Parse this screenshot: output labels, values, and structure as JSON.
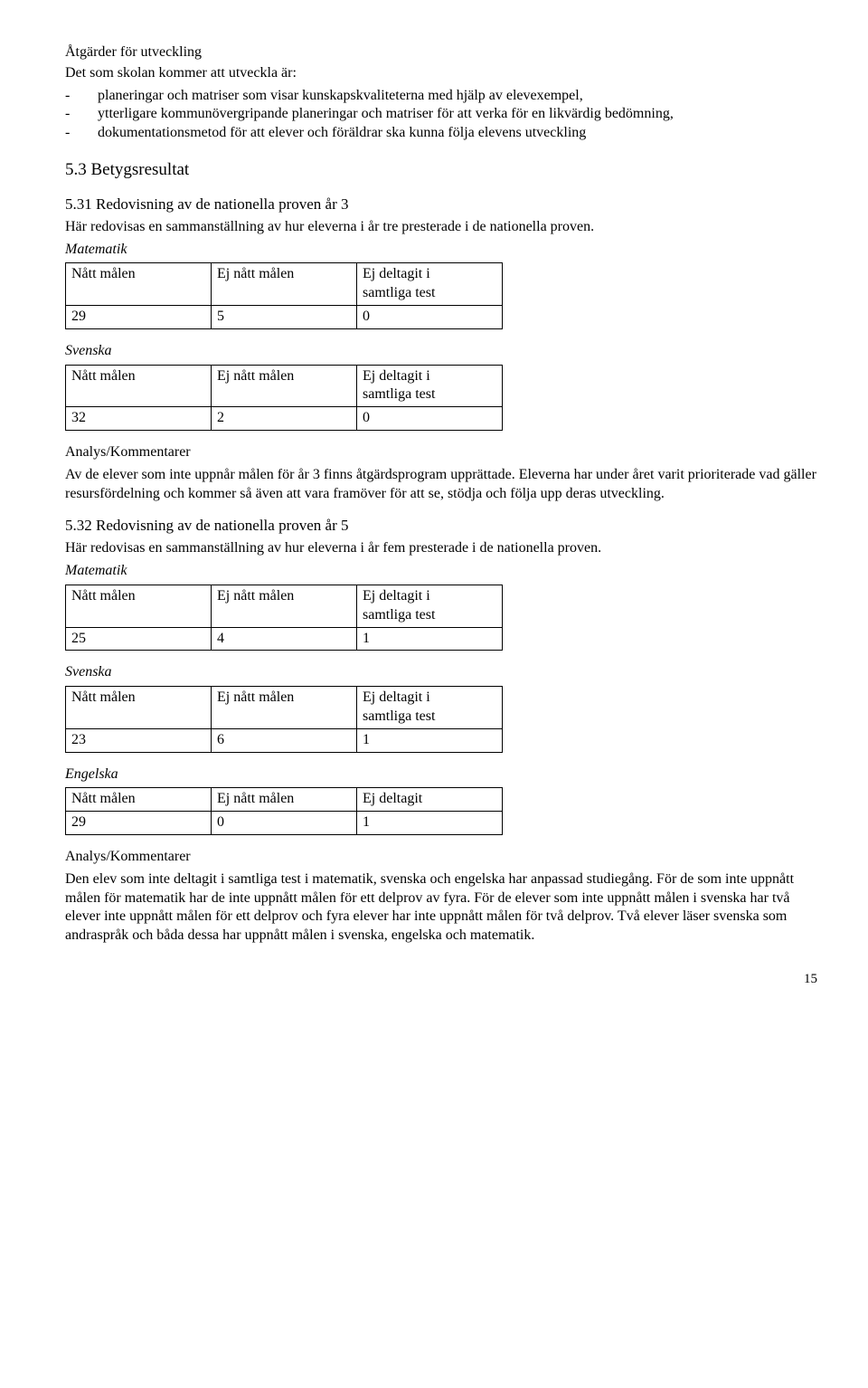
{
  "section_atgarder": {
    "heading": "Åtgärder för utveckling",
    "intro": "Det som skolan kommer att utveckla är:",
    "bullets": [
      "planeringar och matriser som visar kunskapskvaliteterna med hjälp av elevexempel,",
      "ytterligare kommunövergripande planeringar och matriser för att verka för en likvärdig bedömning,",
      "dokumentationsmetod för att elever och föräldrar ska kunna följa elevens utveckling"
    ]
  },
  "section_53": {
    "heading": "5.3 Betygsresultat"
  },
  "section_531": {
    "heading": "5.31 Redovisning av de nationella proven år 3",
    "intro": "Här redovisas en sammanställning av hur eleverna i år tre presterade i de nationella proven.",
    "math_label": "Matematik",
    "col_a": "Nått målen",
    "col_b": "Ej nått målen",
    "col_c_line1": "Ej deltagit i",
    "col_c_line2": "samtliga test",
    "math_values": {
      "a": "29",
      "b": "5",
      "c": "0"
    },
    "sv_label": "Svenska",
    "sv_values": {
      "a": "32",
      "b": "2",
      "c": "0"
    },
    "analysis_heading": "Analys/Kommentarer",
    "analysis_text": "Av de elever som inte uppnår målen för år 3 finns åtgärdsprogram upprättade. Eleverna har under året varit prioriterade vad gäller resursfördelning och kommer så även att vara framöver för att se, stödja och följa upp deras utveckling."
  },
  "section_532": {
    "heading": "5.32 Redovisning av de nationella proven år 5",
    "intro": "Här redovisas en sammanställning av hur eleverna i år fem presterade i de nationella proven.",
    "math_label": "Matematik",
    "col_a": "Nått målen",
    "col_b": "Ej nått målen",
    "col_c_line1": "Ej deltagit i",
    "col_c_line2": "samtliga test",
    "col_c_single": "Ej deltagit",
    "math_values": {
      "a": "25",
      "b": "4",
      "c": "1"
    },
    "sv_label": "Svenska",
    "sv_values": {
      "a": "23",
      "b": "6",
      "c": "1"
    },
    "en_label": "Engelska",
    "en_values": {
      "a": "29",
      "b": "0",
      "c": "1"
    },
    "analysis_heading": "Analys/Kommentarer",
    "analysis_text": "Den elev som inte deltagit i samtliga test i matematik, svenska och engelska har anpassad studiegång. För de som inte uppnått målen för matematik har de inte uppnått målen för ett delprov av fyra. För de elever som inte uppnått målen i svenska har två elever inte uppnått målen för ett delprov och fyra elever har inte uppnått målen för två delprov. Två elever läser svenska som andraspråk och båda dessa har uppnått målen i svenska, engelska och matematik."
  },
  "page_number": "15"
}
